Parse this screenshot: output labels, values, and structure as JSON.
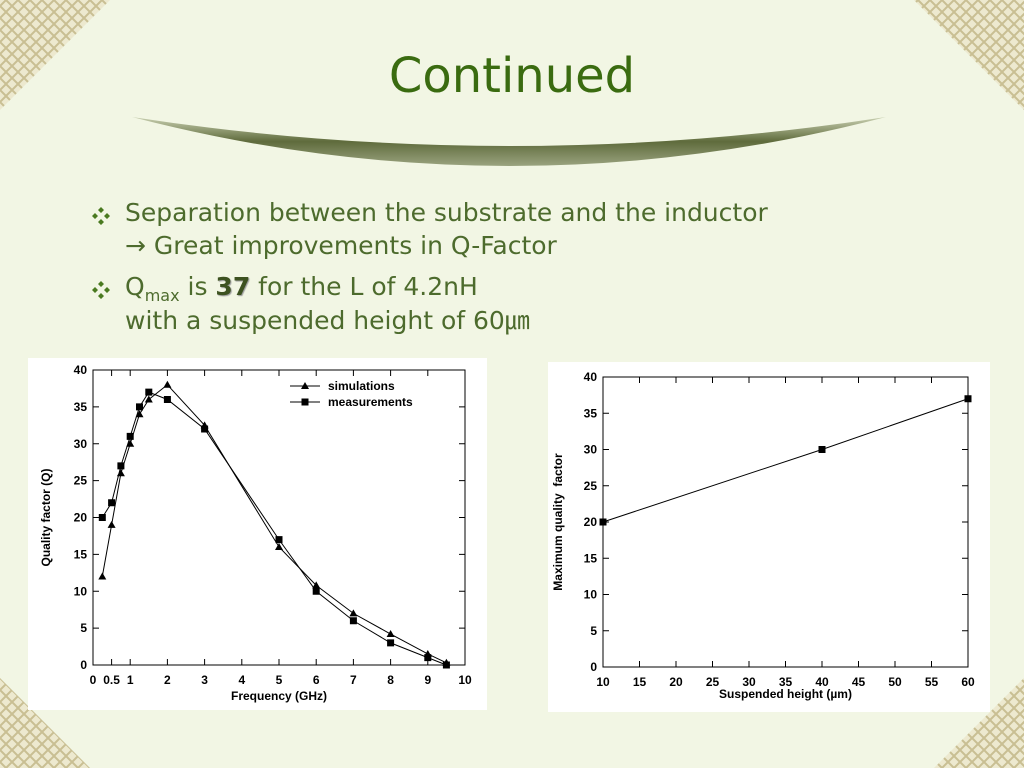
{
  "title": "Continued",
  "bullets": [
    {
      "lines": [
        "Separation between the substrate and the inductor",
        "→ Great improvements in Q-Factor"
      ]
    },
    {
      "q": "Q",
      "sub": "max",
      "is": " is ",
      "bold": "37",
      "rest": " for the L of 4.2nH",
      "line2": "with a suspended height of 60㎛"
    }
  ],
  "chart_data": [
    {
      "type": "line",
      "xlabel": "Frequency (GHz)",
      "ylabel": "Quality factor (Q)",
      "x": [
        0.25,
        0.5,
        0.75,
        1,
        1.25,
        1.5,
        2,
        3,
        5,
        6,
        7,
        8,
        9,
        9.5
      ],
      "series": [
        {
          "name": "simulations",
          "color": "#000000",
          "marker": "triangle",
          "values": [
            12,
            19,
            26,
            30,
            34,
            36,
            38,
            32.5,
            16,
            10.8,
            7,
            4.2,
            1.5,
            0.3
          ]
        },
        {
          "name": "measurements",
          "color": "#000000",
          "marker": "square",
          "values": [
            20,
            22,
            27,
            31,
            35,
            37,
            36,
            32,
            17,
            10,
            6,
            3,
            1,
            0
          ]
        }
      ],
      "xlim": [
        0,
        10
      ],
      "xticks": [
        0,
        0.5,
        1,
        2,
        3,
        4,
        5,
        6,
        7,
        8,
        9,
        10
      ],
      "ylim": [
        0,
        40
      ],
      "yticks": [
        0,
        5,
        10,
        15,
        20,
        25,
        30,
        35,
        40
      ],
      "legend": "upper right"
    },
    {
      "type": "line",
      "xlabel": "Suspended height (µm)",
      "ylabel": "Maximum quality  factor",
      "x": [
        10,
        40,
        60
      ],
      "series": [
        {
          "color": "#000000",
          "marker": "square",
          "values": [
            20,
            30,
            37
          ]
        }
      ],
      "xlim": [
        10,
        60
      ],
      "xticks": [
        10,
        15,
        20,
        25,
        30,
        35,
        40,
        45,
        50,
        55,
        60
      ],
      "ylim": [
        0,
        40
      ],
      "yticks": [
        0,
        5,
        10,
        15,
        20,
        25,
        30,
        35,
        40
      ]
    }
  ]
}
